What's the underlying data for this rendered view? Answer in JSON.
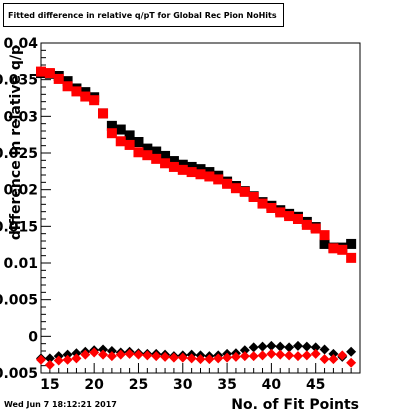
{
  "header": {
    "title": "Fitted difference in relative q/pT for Global Rec Pion NoHits"
  },
  "footer": {
    "timestamp": "Wed Jun  7 18:12:21 2017"
  },
  "colors": {
    "series_black": "#000000",
    "series_red": "#ff0000",
    "frame": "#000000",
    "background": "#ffffff"
  },
  "chart_data": {
    "type": "scatter",
    "title": "Fitted difference in relative q/pT for Global Rec Pion NoHits",
    "xlabel": "No. of Fit Points",
    "ylabel": "difference in relative q/p",
    "xlim": [
      14,
      50
    ],
    "ylim": [
      -0.005,
      0.04
    ],
    "x_tick_labels": [
      "15",
      "20",
      "25",
      "30",
      "35",
      "40",
      "45"
    ],
    "x_ticks": [
      15,
      20,
      25,
      30,
      35,
      40,
      45
    ],
    "y_tick_labels": [
      "-0.005",
      "0",
      "0.005",
      "0.01",
      "0.015",
      "0.02",
      "0.025",
      "0.03",
      "0.035",
      "0.04"
    ],
    "y_ticks": [
      -0.005,
      0,
      0.005,
      0.01,
      0.015,
      0.02,
      0.025,
      0.03,
      0.035,
      0.04
    ],
    "x": [
      14,
      15,
      16,
      17,
      18,
      19,
      20,
      21,
      22,
      23,
      24,
      25,
      26,
      27,
      28,
      29,
      30,
      31,
      32,
      33,
      34,
      35,
      36,
      37,
      38,
      39,
      40,
      41,
      42,
      43,
      44,
      45,
      46,
      47,
      48,
      49
    ],
    "series": [
      {
        "marker": "square",
        "color": "#000000",
        "values": [
          0.0359,
          0.0358,
          0.0355,
          0.0348,
          0.0338,
          0.0333,
          0.0326,
          0.0304,
          0.0287,
          0.0282,
          0.0274,
          0.0265,
          0.0256,
          0.0252,
          0.0246,
          0.0239,
          0.0234,
          0.0231,
          0.0228,
          0.0224,
          0.0219,
          0.0211,
          0.0205,
          0.0198,
          0.0191,
          0.0183,
          0.0178,
          0.0172,
          0.0167,
          0.0163,
          0.0156,
          0.0149,
          0.0126,
          0.0121,
          0.0121,
          0.0126
        ]
      },
      {
        "marker": "square",
        "color": "#ff0000",
        "values": [
          0.0361,
          0.0359,
          0.0351,
          0.0341,
          0.0334,
          0.0327,
          0.0322,
          0.0304,
          0.0277,
          0.0266,
          0.0261,
          0.0251,
          0.0247,
          0.0242,
          0.0236,
          0.0231,
          0.0227,
          0.0224,
          0.0221,
          0.0218,
          0.0214,
          0.0208,
          0.0202,
          0.0197,
          0.019,
          0.0181,
          0.0175,
          0.0169,
          0.0164,
          0.016,
          0.0152,
          0.0147,
          0.0138,
          0.012,
          0.0118,
          0.0107
        ]
      },
      {
        "marker": "diamond",
        "color": "#000000",
        "values": [
          -0.003,
          -0.003,
          -0.0027,
          -0.0025,
          -0.0023,
          -0.0021,
          -0.0019,
          -0.0018,
          -0.002,
          -0.0022,
          -0.0021,
          -0.0023,
          -0.0024,
          -0.0024,
          -0.0025,
          -0.0027,
          -0.0026,
          -0.0025,
          -0.0026,
          -0.0027,
          -0.0026,
          -0.0024,
          -0.0023,
          -0.0019,
          -0.0015,
          -0.0014,
          -0.0013,
          -0.0014,
          -0.0015,
          -0.0013,
          -0.0014,
          -0.0015,
          -0.0018,
          -0.0024,
          -0.0028,
          -0.0021
        ]
      },
      {
        "marker": "diamond",
        "color": "#ff0000",
        "values": [
          -0.0032,
          -0.0039,
          -0.0033,
          -0.0032,
          -0.003,
          -0.0025,
          -0.0022,
          -0.0025,
          -0.0027,
          -0.0025,
          -0.0024,
          -0.0025,
          -0.0026,
          -0.0027,
          -0.0028,
          -0.0029,
          -0.0029,
          -0.003,
          -0.0031,
          -0.0031,
          -0.003,
          -0.0029,
          -0.0028,
          -0.0027,
          -0.0027,
          -0.0026,
          -0.0024,
          -0.0025,
          -0.0026,
          -0.0027,
          -0.0026,
          -0.0024,
          -0.0031,
          -0.0031,
          -0.0026,
          -0.0036
        ]
      }
    ],
    "grid": false,
    "legend": "none"
  }
}
